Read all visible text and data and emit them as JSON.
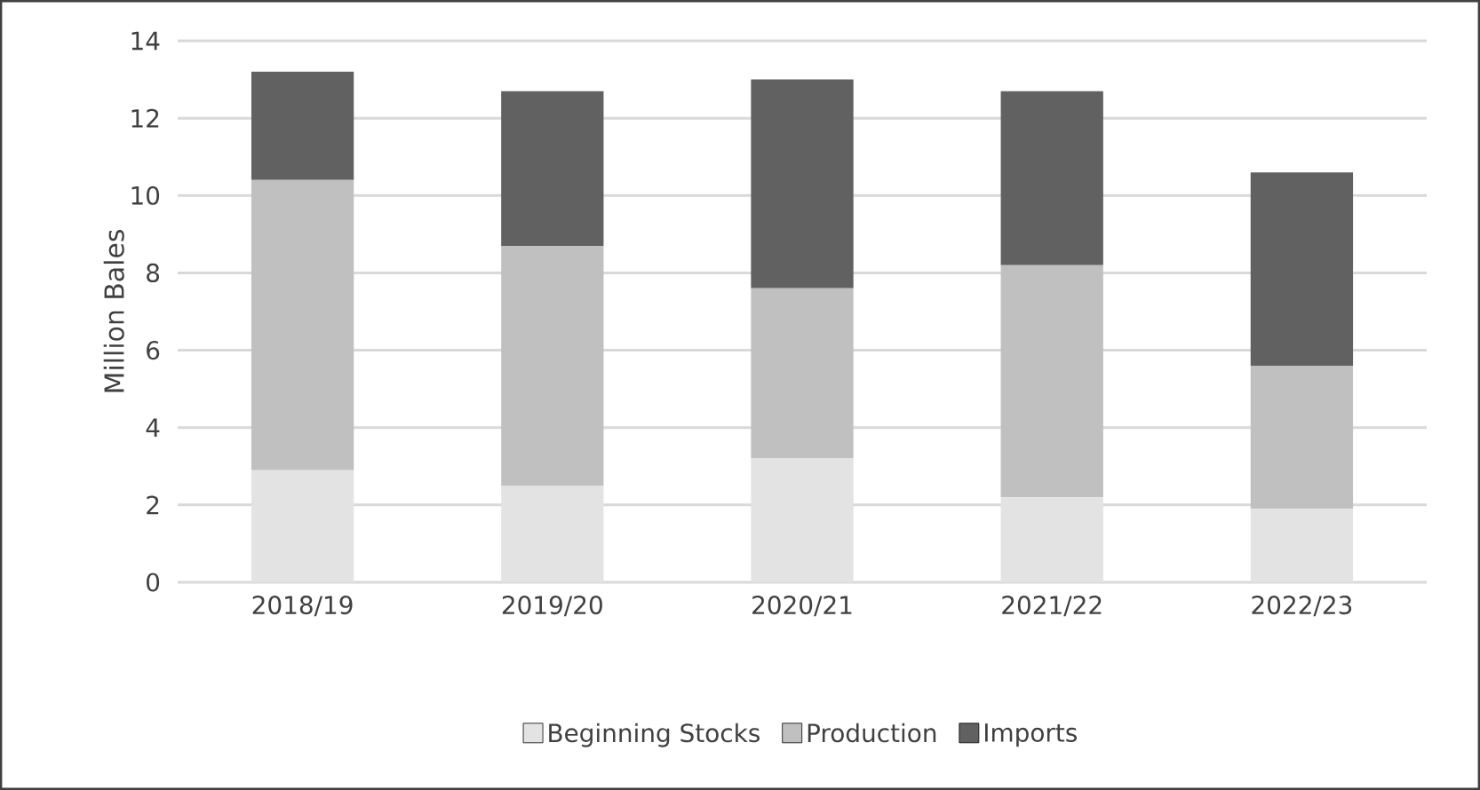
{
  "chart_data": {
    "type": "bar",
    "stacked": true,
    "ylabel": "Million Bales",
    "categories": [
      "2018/19",
      "2019/20",
      "2020/21",
      "2021/22",
      "2022/23"
    ],
    "series": [
      {
        "name": "Beginning Stocks",
        "color": "#e3e3e3",
        "values": [
          2.9,
          2.5,
          3.2,
          2.2,
          1.9
        ]
      },
      {
        "name": "Production",
        "color": "#c0c0c0",
        "values": [
          7.5,
          6.2,
          4.4,
          6.0,
          3.7
        ]
      },
      {
        "name": "Imports",
        "color": "#616161",
        "values": [
          2.8,
          4.0,
          5.4,
          4.5,
          5.0
        ]
      }
    ],
    "ylim": [
      0,
      14
    ],
    "yticks": [
      0,
      2,
      4,
      6,
      8,
      10,
      12,
      14
    ],
    "grid": "y",
    "legend": "bottom"
  }
}
